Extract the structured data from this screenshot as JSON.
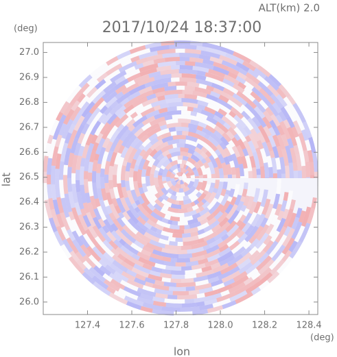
{
  "chart_data": {
    "type": "radar-ppi",
    "altitude_label": "ALT(km)  2.0",
    "title": "2017/10/24 18:37:00",
    "y_unit": "(deg)",
    "x_unit": "(deg)",
    "xlabel": "lon",
    "ylabel": "lat",
    "xlim": [
      127.2,
      128.44
    ],
    "xticks": [
      127.4,
      127.6,
      127.8,
      {
        "value": 128,
        "label": "128.0"
      },
      128.2,
      128.4
    ],
    "ylim": [
      25.95,
      27.04
    ],
    "yticks": [
      {
        "value": 26,
        "label": "26.0"
      },
      26.1,
      26.2,
      26.3,
      26.4,
      26.5,
      26.6,
      26.7,
      26.8,
      26.9,
      {
        "value": 27,
        "label": "27.0"
      }
    ]
  }
}
